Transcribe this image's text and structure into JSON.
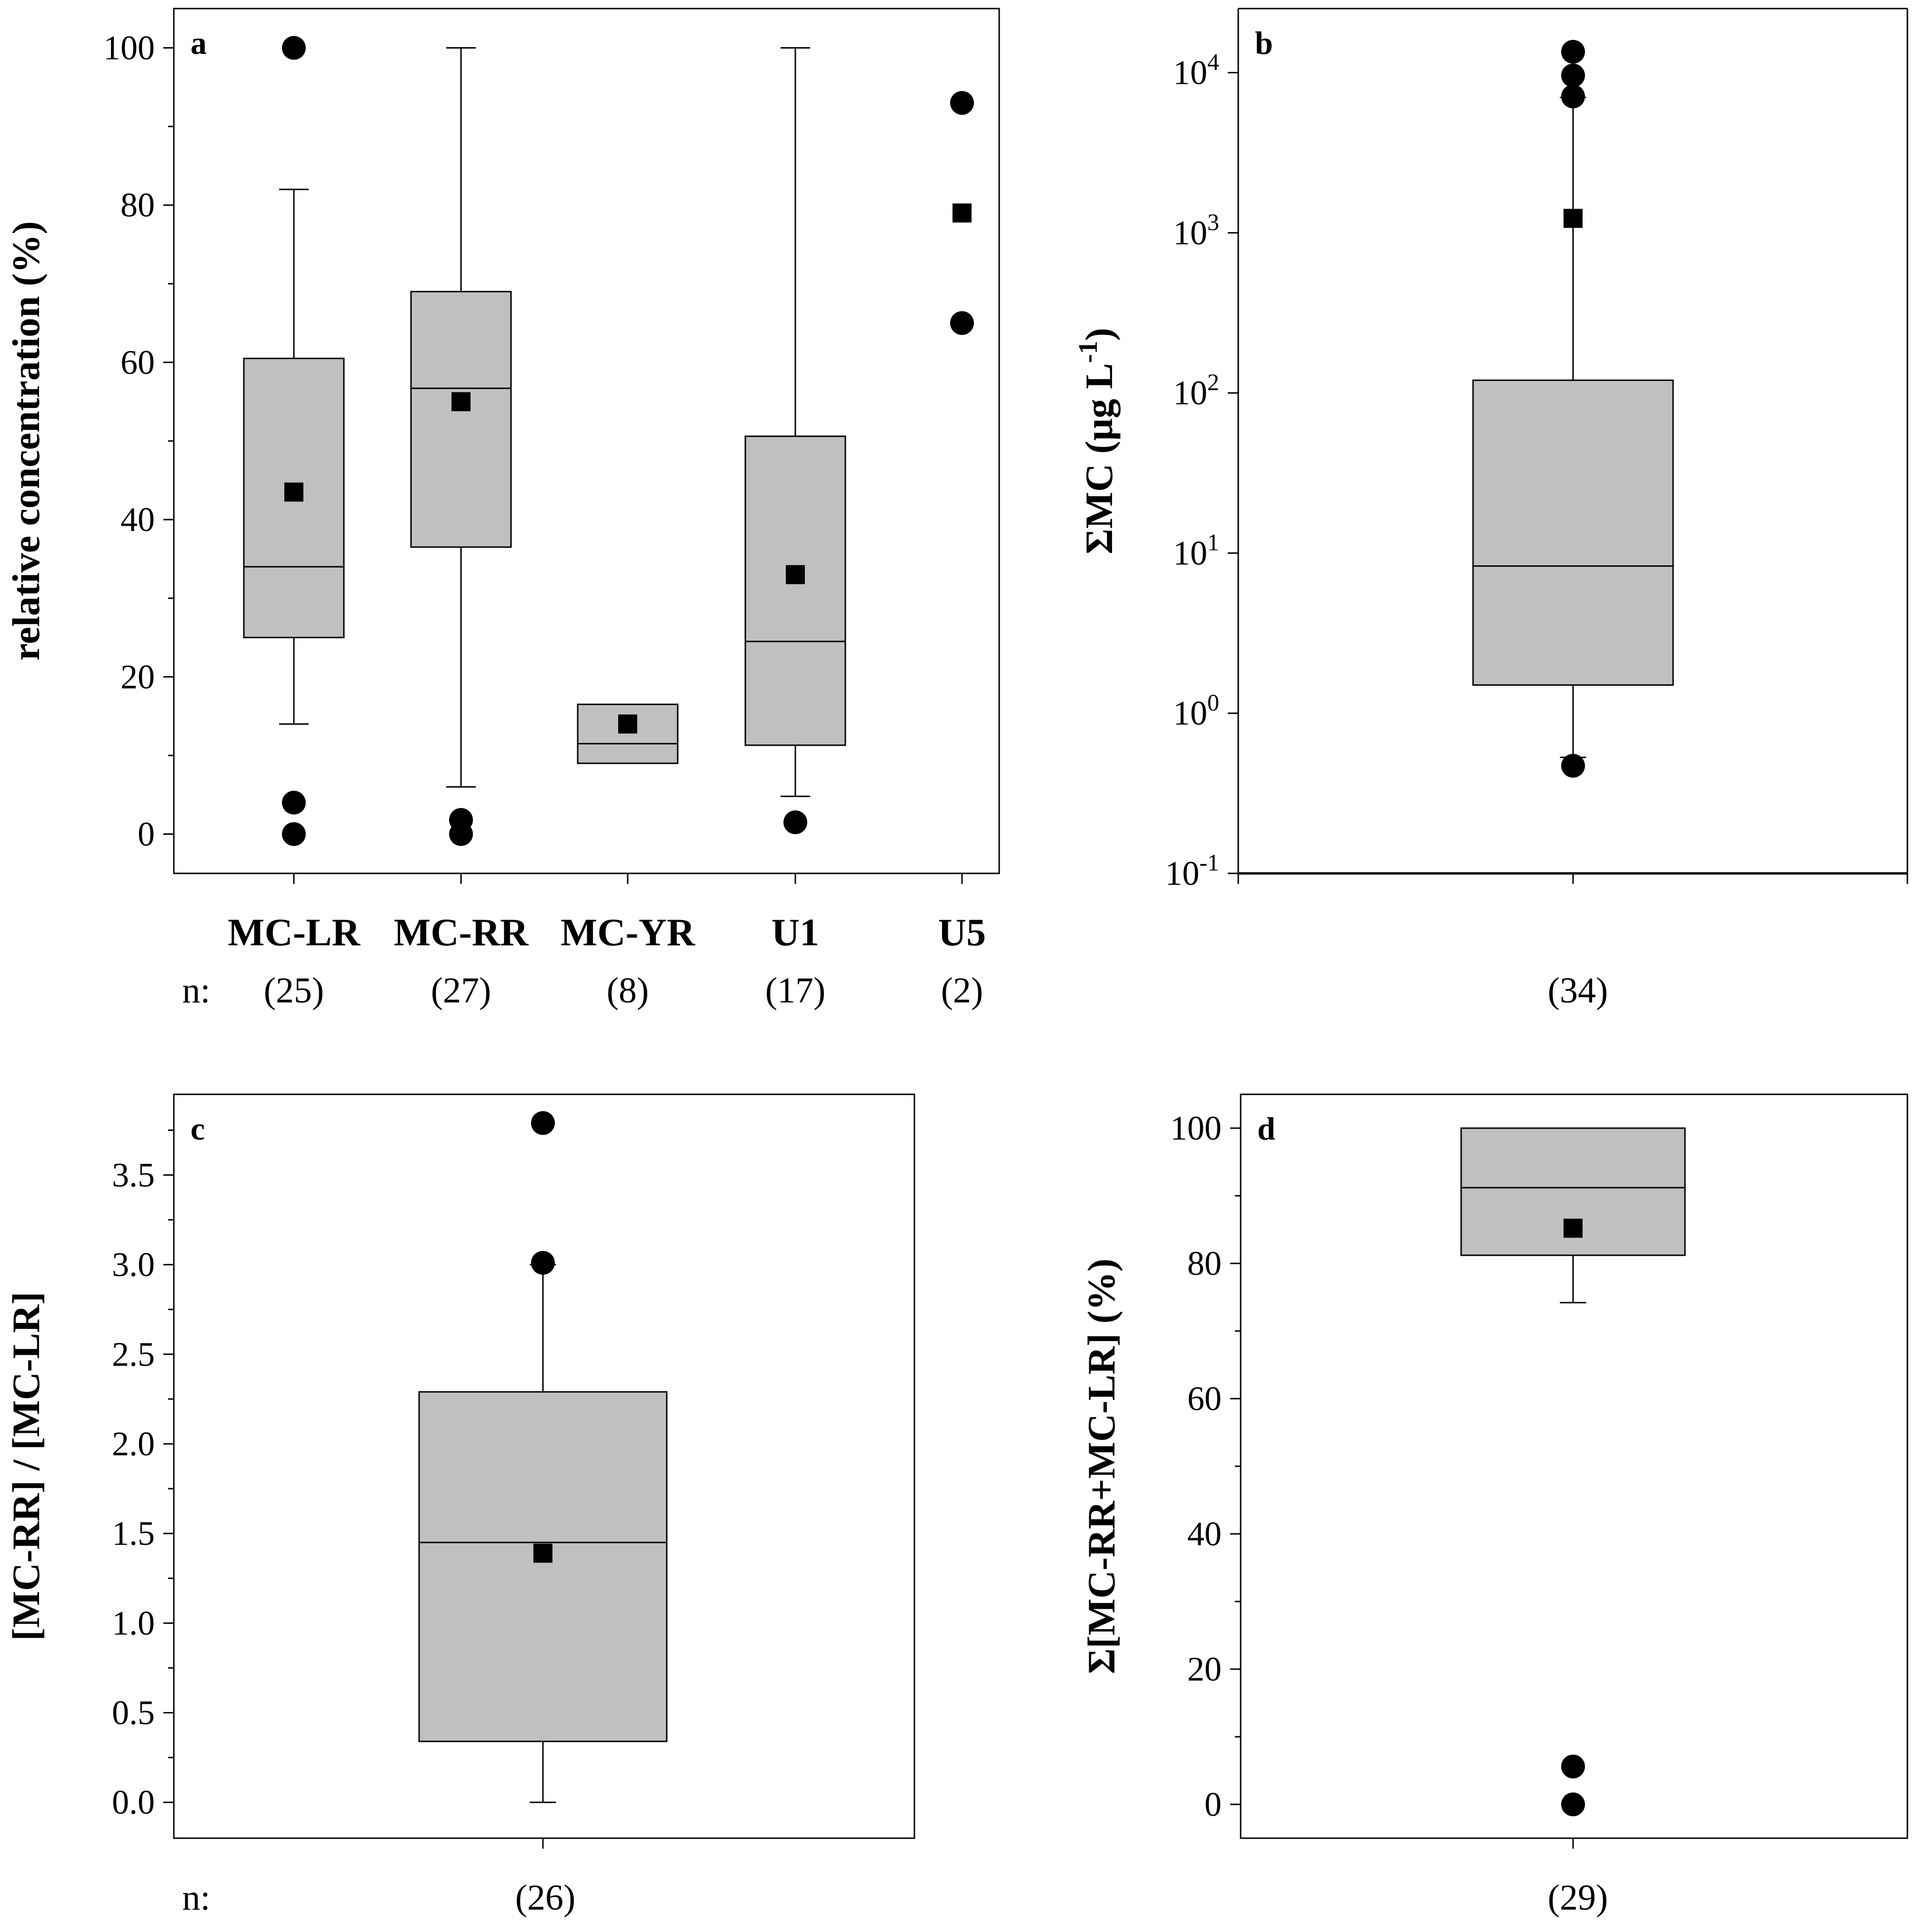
{
  "chart_data": [
    {
      "panel": "a",
      "type": "box",
      "ylabel": "relative concentration (%)",
      "ylim": [
        -5,
        105
      ],
      "yticks": [
        0,
        20,
        40,
        60,
        80,
        100
      ],
      "n_prefix": "n:",
      "series": [
        {
          "category": "MC-LR",
          "n": "(25)",
          "q1": 25,
          "median": 34,
          "q3": 60.5,
          "whisker_low": 14,
          "whisker_high": 82,
          "mean": 43.5,
          "outliers": [
            100,
            4,
            0
          ]
        },
        {
          "category": "MC-RR",
          "n": "(27)",
          "q1": 36.5,
          "median": 56.7,
          "q3": 69,
          "whisker_low": 6,
          "whisker_high": 100,
          "mean": 55,
          "outliers": [
            1.8,
            0
          ]
        },
        {
          "category": "MC-YR",
          "n": "(8)",
          "q1": 9,
          "median": 11.5,
          "q3": 16.5,
          "whisker_low": null,
          "whisker_high": null,
          "mean": 14,
          "outliers": []
        },
        {
          "category": "U1",
          "n": "(17)",
          "q1": 11.3,
          "median": 24.5,
          "q3": 50.6,
          "whisker_low": 4.8,
          "whisker_high": 100,
          "mean": 33,
          "outliers": [
            1.5
          ]
        },
        {
          "category": "U5",
          "n": "(2)",
          "q1": null,
          "median": null,
          "q3": null,
          "whisker_low": null,
          "whisker_high": null,
          "mean": 79,
          "outliers": [
            93,
            65
          ]
        }
      ]
    },
    {
      "panel": "b",
      "type": "box",
      "scale": "log",
      "ylabel_main": "ΣMC (µg L",
      "ylabel_sup": "-1",
      "ylabel_close": ")",
      "ylim_log10": [
        -1,
        4.4
      ],
      "yticks": [
        {
          "base": "10",
          "exp": "-1",
          "log": -1
        },
        {
          "base": "10",
          "exp": "0",
          "log": 0
        },
        {
          "base": "10",
          "exp": "1",
          "log": 1
        },
        {
          "base": "10",
          "exp": "2",
          "log": 2
        },
        {
          "base": "10",
          "exp": "3",
          "log": 3
        },
        {
          "base": "10",
          "exp": "4",
          "log": 4
        }
      ],
      "series": [
        {
          "n": "(34)",
          "q1": 1.5,
          "median": 8.3,
          "q3": 120,
          "whisker_low": 0.53,
          "whisker_high": 7000,
          "mean": 1230,
          "outliers": [
            13500,
            9600,
            7100,
            0.47
          ]
        }
      ]
    },
    {
      "panel": "c",
      "type": "box",
      "ylabel": "[MC-RR] / [MC-LR]",
      "ylim": [
        -0.2,
        3.95
      ],
      "yticks": [
        "0.0",
        "0.5",
        "1.0",
        "1.5",
        "2.0",
        "2.5",
        "3.0",
        "3.5"
      ],
      "n_prefix": "n:",
      "series": [
        {
          "n": "(26)",
          "q1": 0.34,
          "median": 1.45,
          "q3": 2.29,
          "whisker_low": 0,
          "whisker_high": 3.0,
          "mean": 1.39,
          "outliers": [
            3.79,
            3.01
          ]
        }
      ]
    },
    {
      "panel": "d",
      "type": "box",
      "ylabel": "Σ[MC-RR+MC-LR] (%)",
      "ylim": [
        -5,
        105
      ],
      "yticks": [
        0,
        20,
        40,
        60,
        80,
        100
      ],
      "series": [
        {
          "n": "(29)",
          "q1": 81.2,
          "median": 91.2,
          "q3": 100,
          "whisker_low": 74.2,
          "whisker_high": null,
          "mean": 85.2,
          "outliers": [
            5.6,
            0
          ]
        }
      ]
    }
  ]
}
